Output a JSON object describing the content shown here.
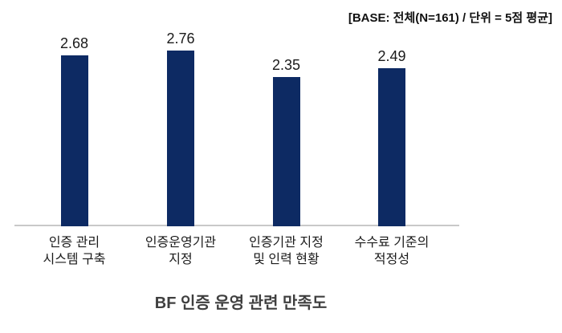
{
  "base_note": "[BASE: 전체(N=161) / 단위 = 5점 평균]",
  "title": "BF 인증 운영 관련 만족도",
  "colors": {
    "bar": "#0d2a63",
    "axis_line": "#c9c9c9",
    "value_text": "#1a1a1a",
    "category_text": "#1a1a1a",
    "title_text": "#3f3f3f",
    "background": "#ffffff"
  },
  "chart_data": {
    "type": "bar",
    "categories": [
      "인증 관리\n시스템 구축",
      "인증운영기관\n지정",
      "인증기관 지정\n및 인력 현황",
      "수수료 기준의\n적정성"
    ],
    "values": [
      2.68,
      2.76,
      2.35,
      2.49
    ],
    "value_label_format": "2-decimal",
    "title": "BF 인증 운영 관련 만족도",
    "annotation": "[BASE: 전체(N=161) / 단위 = 5점 평균]",
    "base": "전체(N=161)",
    "unit": "5점 평균",
    "xlabel": "",
    "ylabel": "",
    "ylim": [
      0,
      5
    ],
    "grid": false,
    "legend": false,
    "data_labels": true,
    "bar_color": "#0d2a63"
  }
}
